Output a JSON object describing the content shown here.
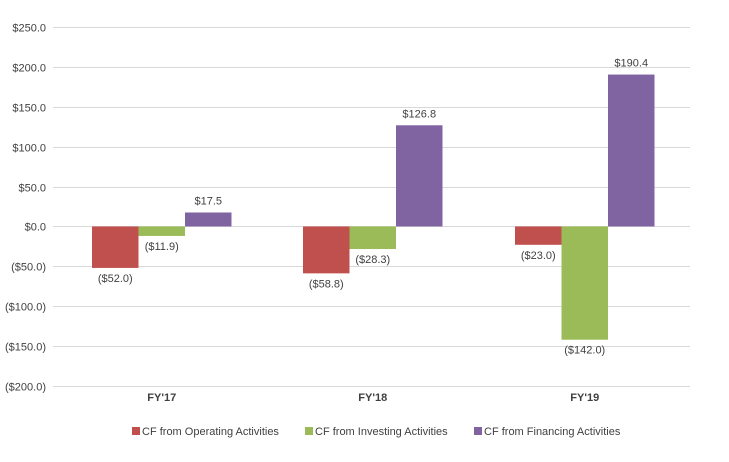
{
  "chart_data": {
    "type": "bar",
    "categories": [
      "FY'17",
      "FY'18",
      "FY'19"
    ],
    "series": [
      {
        "name": "CF from Operating Activities",
        "values": [
          -52.0,
          -58.8,
          -23.0
        ],
        "labels": [
          "($52.0)",
          "($58.8)",
          "($23.0)"
        ],
        "color": "#c0504d"
      },
      {
        "name": "CF from Investing Activities",
        "values": [
          -11.9,
          -28.3,
          -142.0
        ],
        "labels": [
          "($11.9)",
          "($28.3)",
          "($142.0)"
        ],
        "color": "#9bbb59"
      },
      {
        "name": "CF from Financing Activities",
        "values": [
          17.5,
          126.8,
          190.4
        ],
        "labels": [
          "$17.5",
          "$126.8",
          "$190.4"
        ],
        "color": "#8064a2"
      }
    ],
    "y_ticks": [
      {
        "value": 250,
        "label": "$250.0"
      },
      {
        "value": 200,
        "label": "$200.0"
      },
      {
        "value": 150,
        "label": "$150.0"
      },
      {
        "value": 100,
        "label": "$100.0"
      },
      {
        "value": 50,
        "label": "$50.0"
      },
      {
        "value": 0,
        "label": "$0.0"
      },
      {
        "value": -50,
        "label": "($50.0)"
      },
      {
        "value": -100,
        "label": "($100.0)"
      },
      {
        "value": -150,
        "label": "($150.0)"
      },
      {
        "value": -200,
        "label": "($200.0)"
      }
    ],
    "ylim": [
      -200,
      250
    ],
    "grid": true,
    "legend_position": "bottom",
    "gridline_color": "#d9d9d9"
  }
}
